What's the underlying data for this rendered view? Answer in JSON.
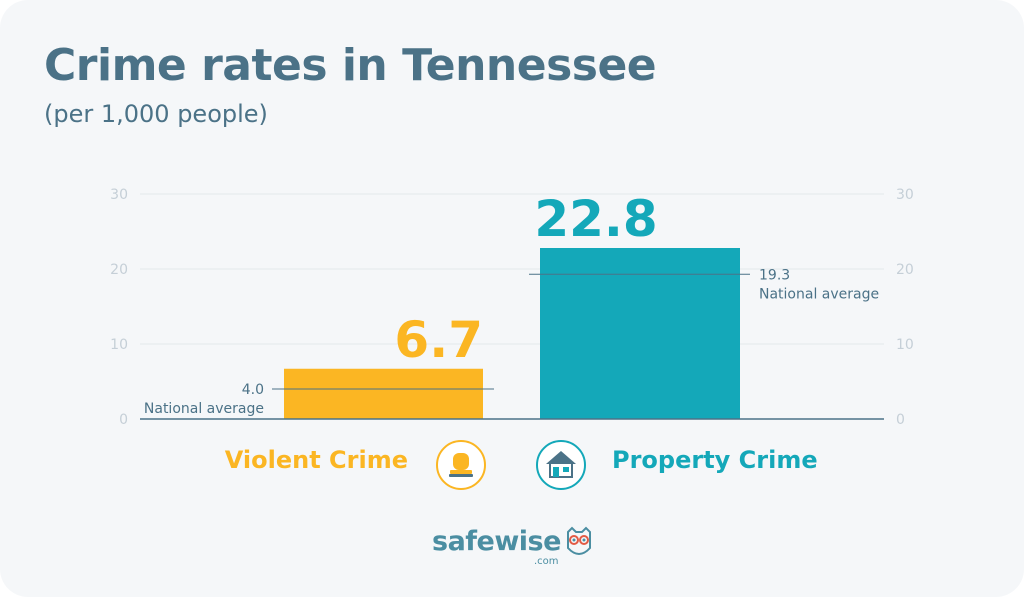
{
  "title": "Crime rates in Tennessee",
  "subtitle": "(per 1,000 people)",
  "chart_data": {
    "type": "bar",
    "categories": [
      "Violent Crime",
      "Property Crime"
    ],
    "values": [
      6.7,
      22.8
    ],
    "value_labels": [
      "6.7",
      "22.8"
    ],
    "colors": [
      "#fbb623",
      "#14a8b9"
    ],
    "national_average": {
      "label": "National average",
      "values": [
        4.0,
        19.3
      ],
      "value_labels": [
        "4.0",
        "19.3"
      ]
    },
    "ylim": [
      0,
      30
    ],
    "yticks": [
      0,
      10,
      20,
      30
    ],
    "grid": true,
    "dual_y_axis": true
  },
  "icons": {
    "violent": "siren-light-icon",
    "property": "house-icon"
  },
  "logo": {
    "text": "safewise",
    "sub": ".com"
  },
  "colors": {
    "title": "#4b7287",
    "grid": "#e3e8ec",
    "axis": "#4b7287",
    "tick": "#c5cfd7"
  }
}
